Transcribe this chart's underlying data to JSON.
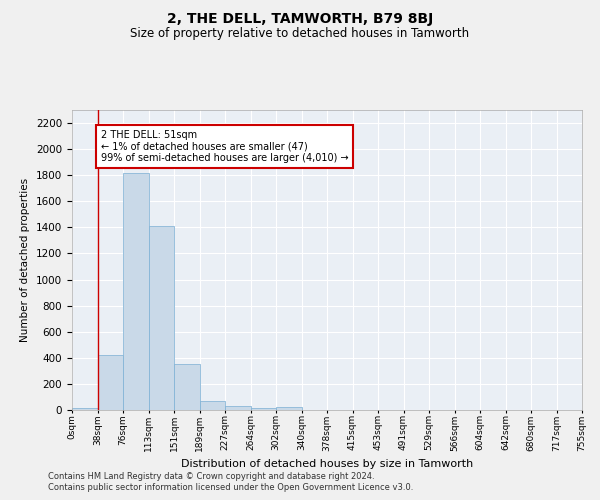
{
  "title": "2, THE DELL, TAMWORTH, B79 8BJ",
  "subtitle": "Size of property relative to detached houses in Tamworth",
  "xlabel": "Distribution of detached houses by size in Tamworth",
  "ylabel": "Number of detached properties",
  "bar_color": "#c9d9e8",
  "bar_edge_color": "#7bafd4",
  "bin_labels": [
    "0sqm",
    "38sqm",
    "76sqm",
    "113sqm",
    "151sqm",
    "189sqm",
    "227sqm",
    "264sqm",
    "302sqm",
    "340sqm",
    "378sqm",
    "415sqm",
    "453sqm",
    "491sqm",
    "529sqm",
    "566sqm",
    "604sqm",
    "642sqm",
    "680sqm",
    "717sqm",
    "755sqm"
  ],
  "bar_heights": [
    15,
    420,
    1820,
    1410,
    350,
    70,
    28,
    18,
    20,
    0,
    0,
    0,
    0,
    0,
    0,
    0,
    0,
    0,
    0,
    0
  ],
  "ylim": [
    0,
    2300
  ],
  "yticks": [
    0,
    200,
    400,
    600,
    800,
    1000,
    1200,
    1400,
    1600,
    1800,
    2000,
    2200
  ],
  "property_line_x": 1,
  "annotation_text": "2 THE DELL: 51sqm\n← 1% of detached houses are smaller (47)\n99% of semi-detached houses are larger (4,010) →",
  "annotation_box_color": "#ffffff",
  "annotation_box_edgecolor": "#cc0000",
  "footer_line1": "Contains HM Land Registry data © Crown copyright and database right 2024.",
  "footer_line2": "Contains public sector information licensed under the Open Government Licence v3.0.",
  "property_line_color": "#cc0000",
  "background_color": "#eaeff5",
  "fig_background_color": "#f0f0f0",
  "grid_color": "#ffffff"
}
